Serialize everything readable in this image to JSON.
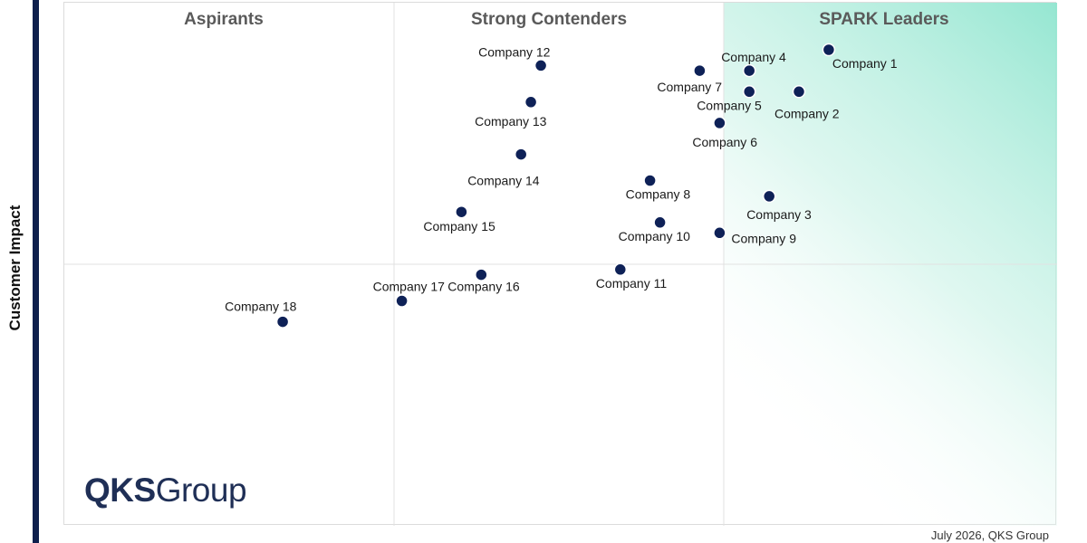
{
  "chart_data": {
    "type": "scatter",
    "ylabel": "Customer Impact",
    "quadrants": [
      "Aspirants",
      "Strong Contenders",
      "SPARK Leaders"
    ],
    "points": [
      {
        "label": "Company 1",
        "x": 7.7,
        "y": 9.1
      },
      {
        "label": "Company 2",
        "x": 7.4,
        "y": 8.3
      },
      {
        "label": "Company 3",
        "x": 7.1,
        "y": 6.3
      },
      {
        "label": "Company 4",
        "x": 6.9,
        "y": 8.7
      },
      {
        "label": "Company 5",
        "x": 6.9,
        "y": 8.3
      },
      {
        "label": "Company 6",
        "x": 6.6,
        "y": 7.7
      },
      {
        "label": "Company 7",
        "x": 6.4,
        "y": 8.7
      },
      {
        "label": "Company 8",
        "x": 5.9,
        "y": 6.6
      },
      {
        "label": "Company 9",
        "x": 6.6,
        "y": 5.6
      },
      {
        "label": "Company 10",
        "x": 6.0,
        "y": 5.8
      },
      {
        "label": "Company 11",
        "x": 5.6,
        "y": 4.9
      },
      {
        "label": "Company 12",
        "x": 4.8,
        "y": 8.8
      },
      {
        "label": "Company 13",
        "x": 4.7,
        "y": 8.1
      },
      {
        "label": "Company 14",
        "x": 4.6,
        "y": 7.1
      },
      {
        "label": "Company 15",
        "x": 4.0,
        "y": 6.0
      },
      {
        "label": "Company 16",
        "x": 4.2,
        "y": 4.8
      },
      {
        "label": "Company 17",
        "x": 3.4,
        "y": 4.3
      },
      {
        "label": "Company 18",
        "x": 2.2,
        "y": 3.9
      }
    ],
    "colors": {
      "point": "#0e2157",
      "point_stroke": "#ffffff",
      "leader_gradient": "#8fe5cf",
      "bar": "#0e1f4d"
    }
  },
  "brand": {
    "part1": "QKS",
    "part2": "Group"
  },
  "footer": "July 2026, QKS Group"
}
